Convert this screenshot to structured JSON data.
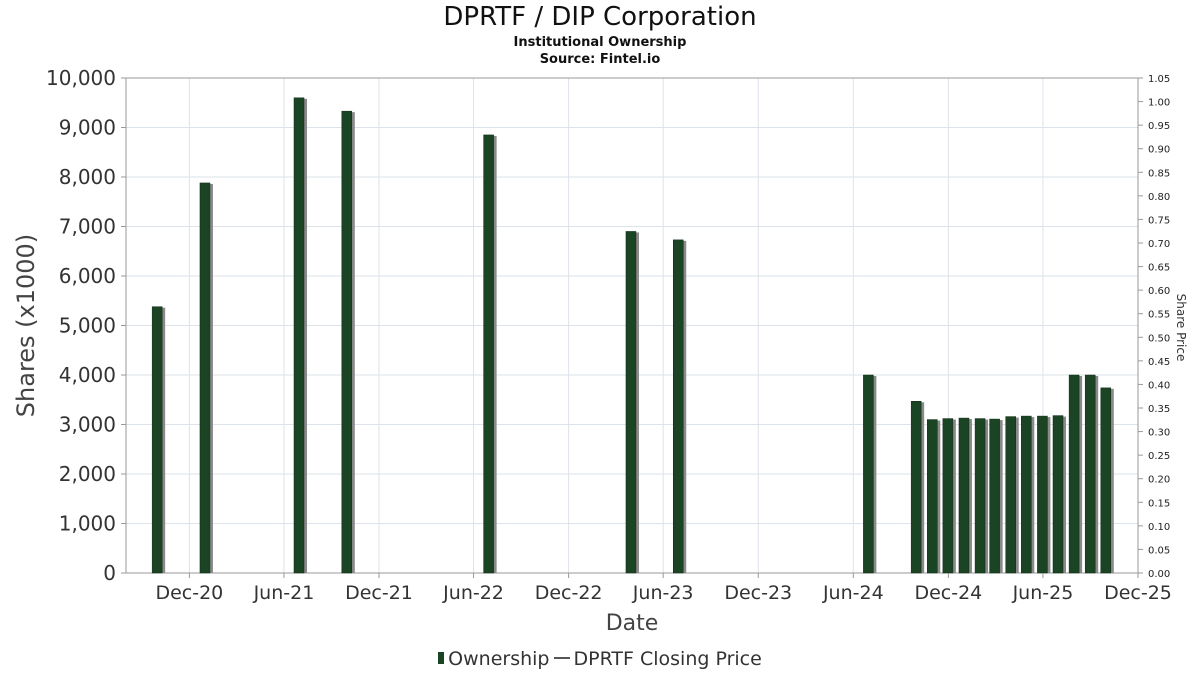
{
  "header": {
    "title": "DPRTF / DIP Corporation",
    "subtitle": "Institutional Ownership",
    "source": "Source: Fintel.io"
  },
  "legend": {
    "ownership": "Ownership",
    "price": "DPRTF Closing Price"
  },
  "colors": {
    "bar": "#1b4424",
    "bar_shadow": "#8a8a8a",
    "grid": "#dde3ea",
    "axis": "#999999"
  },
  "chart_data": {
    "type": "bar",
    "xlabel": "Date",
    "ylabel": "Shares (x1000)",
    "y2label": "Share Price",
    "ylim": [
      0,
      10000
    ],
    "y2lim": [
      0,
      1.05
    ],
    "yticks": [
      "0",
      "1,000",
      "2,000",
      "3,000",
      "4,000",
      "5,000",
      "6,000",
      "7,000",
      "8,000",
      "9,000",
      "10,000"
    ],
    "y2ticks": [
      "0.00",
      "0.05",
      "0.10",
      "0.15",
      "0.20",
      "0.25",
      "0.30",
      "0.35",
      "0.40",
      "0.45",
      "0.50",
      "0.55",
      "0.60",
      "0.65",
      "0.70",
      "0.75",
      "0.80",
      "0.85",
      "0.90",
      "0.95",
      "1.00",
      "1.05"
    ],
    "xticks": [
      {
        "date": "2020-12-01",
        "label": "Dec-20"
      },
      {
        "date": "2021-06-01",
        "label": "Jun-21"
      },
      {
        "date": "2021-12-01",
        "label": "Dec-21"
      },
      {
        "date": "2022-06-01",
        "label": "Jun-22"
      },
      {
        "date": "2022-12-01",
        "label": "Dec-22"
      },
      {
        "date": "2023-06-01",
        "label": "Jun-23"
      },
      {
        "date": "2023-12-01",
        "label": "Dec-23"
      },
      {
        "date": "2024-06-01",
        "label": "Jun-24"
      },
      {
        "date": "2024-12-01",
        "label": "Dec-24"
      },
      {
        "date": "2025-06-01",
        "label": "Jun-25"
      },
      {
        "date": "2025-12-01",
        "label": "Dec-25"
      }
    ],
    "xlim": [
      "2020-08-01",
      "2025-12-01"
    ],
    "grid": true,
    "legend_position": "bottom",
    "series": [
      {
        "name": "Ownership",
        "points": [
          {
            "x": "2020-09-30",
            "y": 5380
          },
          {
            "x": "2020-12-31",
            "y": 7880
          },
          {
            "x": "2021-06-30",
            "y": 9600
          },
          {
            "x": "2021-09-30",
            "y": 9330
          },
          {
            "x": "2022-06-30",
            "y": 8850
          },
          {
            "x": "2023-03-31",
            "y": 6900
          },
          {
            "x": "2023-06-30",
            "y": 6730
          },
          {
            "x": "2024-06-30",
            "y": 4000
          },
          {
            "x": "2024-09-30",
            "y": 3470
          },
          {
            "x": "2024-10-31",
            "y": 3100
          },
          {
            "x": "2024-11-30",
            "y": 3120
          },
          {
            "x": "2024-12-31",
            "y": 3130
          },
          {
            "x": "2025-01-31",
            "y": 3120
          },
          {
            "x": "2025-02-28",
            "y": 3110
          },
          {
            "x": "2025-03-31",
            "y": 3160
          },
          {
            "x": "2025-04-30",
            "y": 3170
          },
          {
            "x": "2025-05-31",
            "y": 3170
          },
          {
            "x": "2025-06-30",
            "y": 3180
          },
          {
            "x": "2025-07-31",
            "y": 4000
          },
          {
            "x": "2025-08-31",
            "y": 4000
          },
          {
            "x": "2025-09-30",
            "y": 3740
          }
        ]
      },
      {
        "name": "DPRTF Closing Price",
        "points": []
      }
    ]
  }
}
